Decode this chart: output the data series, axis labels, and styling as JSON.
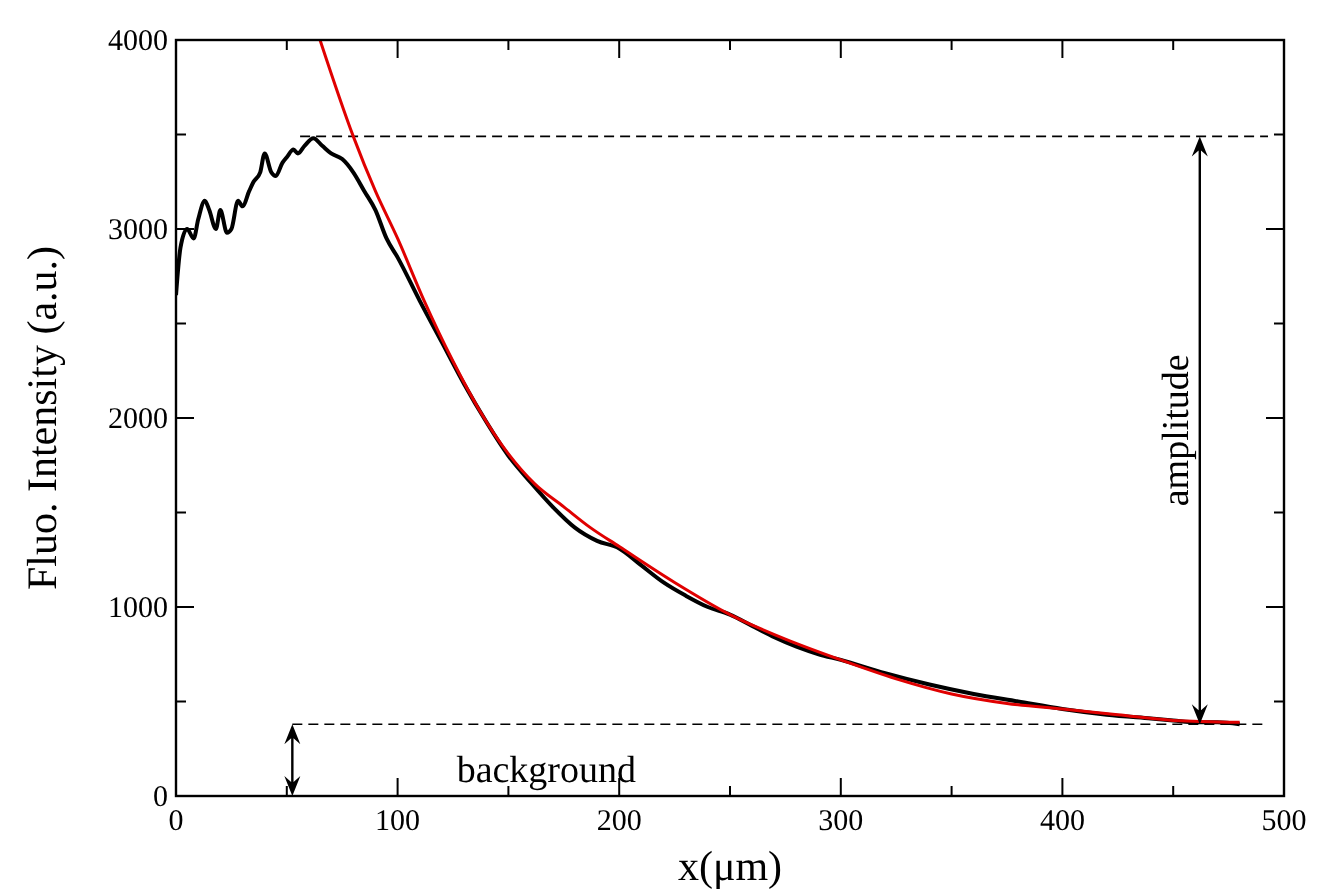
{
  "chart_data": {
    "type": "line",
    "xlabel": "x(μm)",
    "ylabel": "Fluo. Intensity (a.u.)",
    "xlim": [
      0,
      500
    ],
    "ylim": [
      0,
      4000
    ],
    "xticks": [
      0,
      {
        "value": 50,
        "label": null
      },
      100,
      {
        "value": 150,
        "label": null
      },
      200,
      {
        "value": 250,
        "label": null
      },
      300,
      {
        "value": 350,
        "label": null
      },
      400,
      {
        "value": 450,
        "label": null
      },
      500
    ],
    "yticks": [
      0,
      {
        "value": 500,
        "label": null
      },
      1000,
      {
        "value": 1500,
        "label": null
      },
      2000,
      {
        "value": 2500,
        "label": null
      },
      3000,
      {
        "value": 3500,
        "label": null
      },
      4000
    ],
    "grid": false,
    "series": [
      {
        "color": "#000000",
        "x": [
          0,
          2,
          5,
          8,
          10,
          13,
          15,
          18,
          20,
          23,
          25,
          28,
          30,
          33,
          35,
          38,
          40,
          43,
          45,
          48,
          50,
          53,
          55,
          58,
          62,
          66,
          70,
          75,
          80,
          85,
          90,
          95,
          100,
          110,
          120,
          130,
          140,
          150,
          160,
          170,
          180,
          190,
          200,
          210,
          220,
          230,
          240,
          250,
          260,
          270,
          280,
          290,
          300,
          320,
          340,
          360,
          380,
          400,
          420,
          440,
          450,
          460,
          470,
          480
        ],
        "values": [
          2650,
          2900,
          3000,
          2950,
          3050,
          3150,
          3100,
          3000,
          3100,
          2980,
          3000,
          3150,
          3120,
          3200,
          3250,
          3300,
          3400,
          3300,
          3280,
          3350,
          3380,
          3420,
          3400,
          3440,
          3480,
          3440,
          3400,
          3370,
          3300,
          3200,
          3100,
          2950,
          2850,
          2620,
          2400,
          2180,
          1980,
          1800,
          1660,
          1530,
          1420,
          1350,
          1310,
          1220,
          1130,
          1060,
          1000,
          960,
          900,
          840,
          790,
          750,
          720,
          650,
          590,
          540,
          500,
          460,
          430,
          410,
          400,
          390,
          390,
          380
        ]
      },
      {
        "color": "#e00000",
        "x": [
          65,
          80,
          90,
          100,
          112,
          125,
          137,
          150,
          162,
          175,
          187,
          200,
          225,
          250,
          275,
          300,
          325,
          350,
          375,
          400,
          425,
          450,
          480
        ],
        "values": [
          4000,
          3490,
          3200,
          2950,
          2620,
          2300,
          2040,
          1810,
          1650,
          1530,
          1420,
          1320,
          1130,
          960,
          830,
          720,
          620,
          540,
          490,
          460,
          430,
          400,
          390
        ]
      }
    ],
    "ref_lines": [
      {
        "axis": "y",
        "value": 3490,
        "line_style": "dashed",
        "color": "#000000"
      },
      {
        "axis": "y",
        "value": 380,
        "line_style": "dashed",
        "color": "#000000"
      }
    ],
    "annotations": [
      "amplitude",
      "background"
    ]
  }
}
